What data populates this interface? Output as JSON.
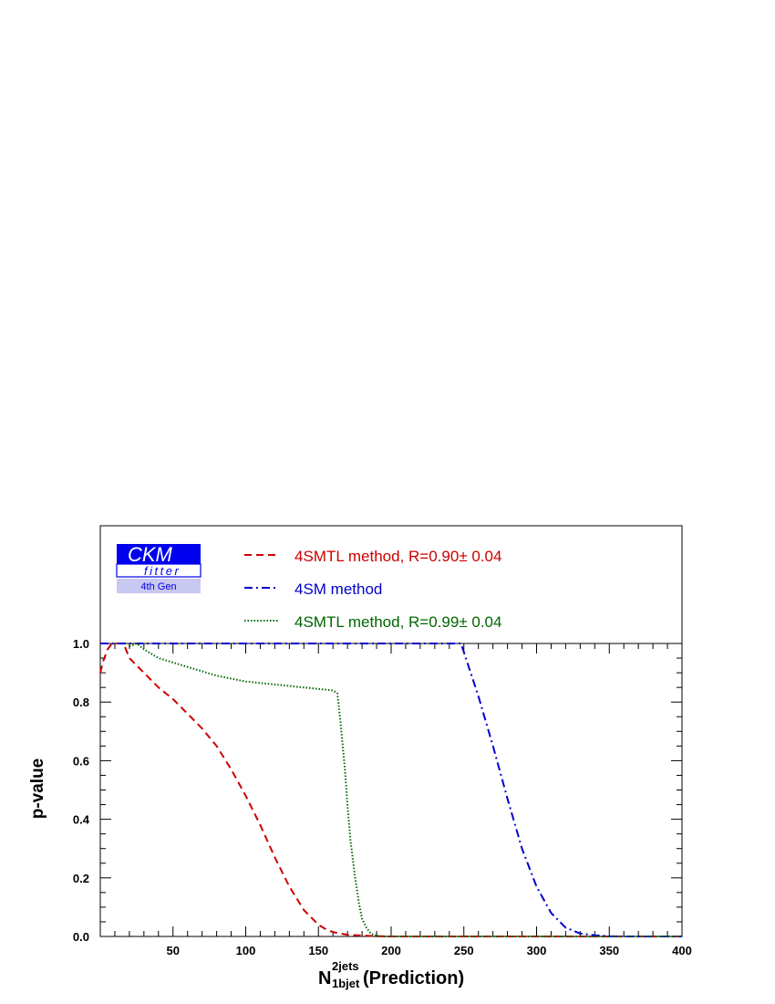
{
  "logo": {
    "line1": "CKM",
    "line2": "fitter",
    "line3": "4th Gen",
    "colors": {
      "dark": "#0000ee",
      "light": "#c8c8f0"
    }
  },
  "chart_data": {
    "type": "line",
    "xlabel_main": "N",
    "xlabel_sup": "2jets",
    "xlabel_sub": "1bjet",
    "xlabel_suffix": "(Prediction)",
    "ylabel": "p-value",
    "xlim": [
      0,
      400
    ],
    "ylim": [
      0,
      1.0
    ],
    "xticks": [
      50,
      100,
      150,
      200,
      250,
      300,
      350,
      400
    ],
    "yticks": [
      0.0,
      0.2,
      0.4,
      0.6,
      0.8,
      1.0
    ],
    "ytick_labels": [
      "0.0",
      "0.2",
      "0.4",
      "0.6",
      "0.8",
      "1.0"
    ],
    "grid": false,
    "legend_placement": "top",
    "series": [
      {
        "name": "4SMTL method, R=0.90± 0.04",
        "color": "#cc0000",
        "dash": "dashed",
        "x": [
          0,
          2,
          5,
          8,
          10,
          13,
          16,
          20,
          30,
          40,
          50,
          60,
          70,
          80,
          90,
          100,
          110,
          120,
          130,
          140,
          150,
          155,
          160,
          165,
          170,
          180,
          190,
          200,
          250,
          300,
          400
        ],
        "y": [
          0.9,
          0.94,
          0.98,
          1.0,
          1.0,
          1.0,
          1.0,
          0.95,
          0.9,
          0.85,
          0.81,
          0.76,
          0.71,
          0.65,
          0.57,
          0.48,
          0.38,
          0.27,
          0.17,
          0.09,
          0.04,
          0.025,
          0.015,
          0.01,
          0.006,
          0.003,
          0.001,
          0,
          0,
          0,
          0
        ]
      },
      {
        "name": "4SM method",
        "color": "#0000cc",
        "dash": "dashdot",
        "x": [
          0,
          50,
          100,
          150,
          200,
          240,
          248,
          250,
          260,
          270,
          280,
          290,
          300,
          310,
          320,
          330,
          340,
          350,
          360,
          400
        ],
        "y": [
          1.0,
          1.0,
          1.0,
          1.0,
          1.0,
          1.0,
          1.0,
          0.97,
          0.82,
          0.65,
          0.47,
          0.3,
          0.17,
          0.08,
          0.03,
          0.01,
          0.004,
          0.001,
          0,
          0
        ]
      },
      {
        "name": "4SMTL method, R=0.99± 0.04",
        "color": "#006600",
        "dash": "dotted",
        "x": [
          20,
          25,
          30,
          40,
          60,
          80,
          100,
          120,
          140,
          160,
          163,
          165,
          168,
          170,
          172,
          175,
          178,
          180,
          183,
          186,
          190,
          195,
          200,
          250,
          400
        ],
        "y": [
          0.99,
          1.0,
          0.98,
          0.95,
          0.92,
          0.89,
          0.87,
          0.86,
          0.85,
          0.84,
          0.83,
          0.74,
          0.58,
          0.45,
          0.33,
          0.21,
          0.11,
          0.06,
          0.03,
          0.01,
          0.002,
          0,
          0,
          0,
          0
        ]
      }
    ]
  }
}
